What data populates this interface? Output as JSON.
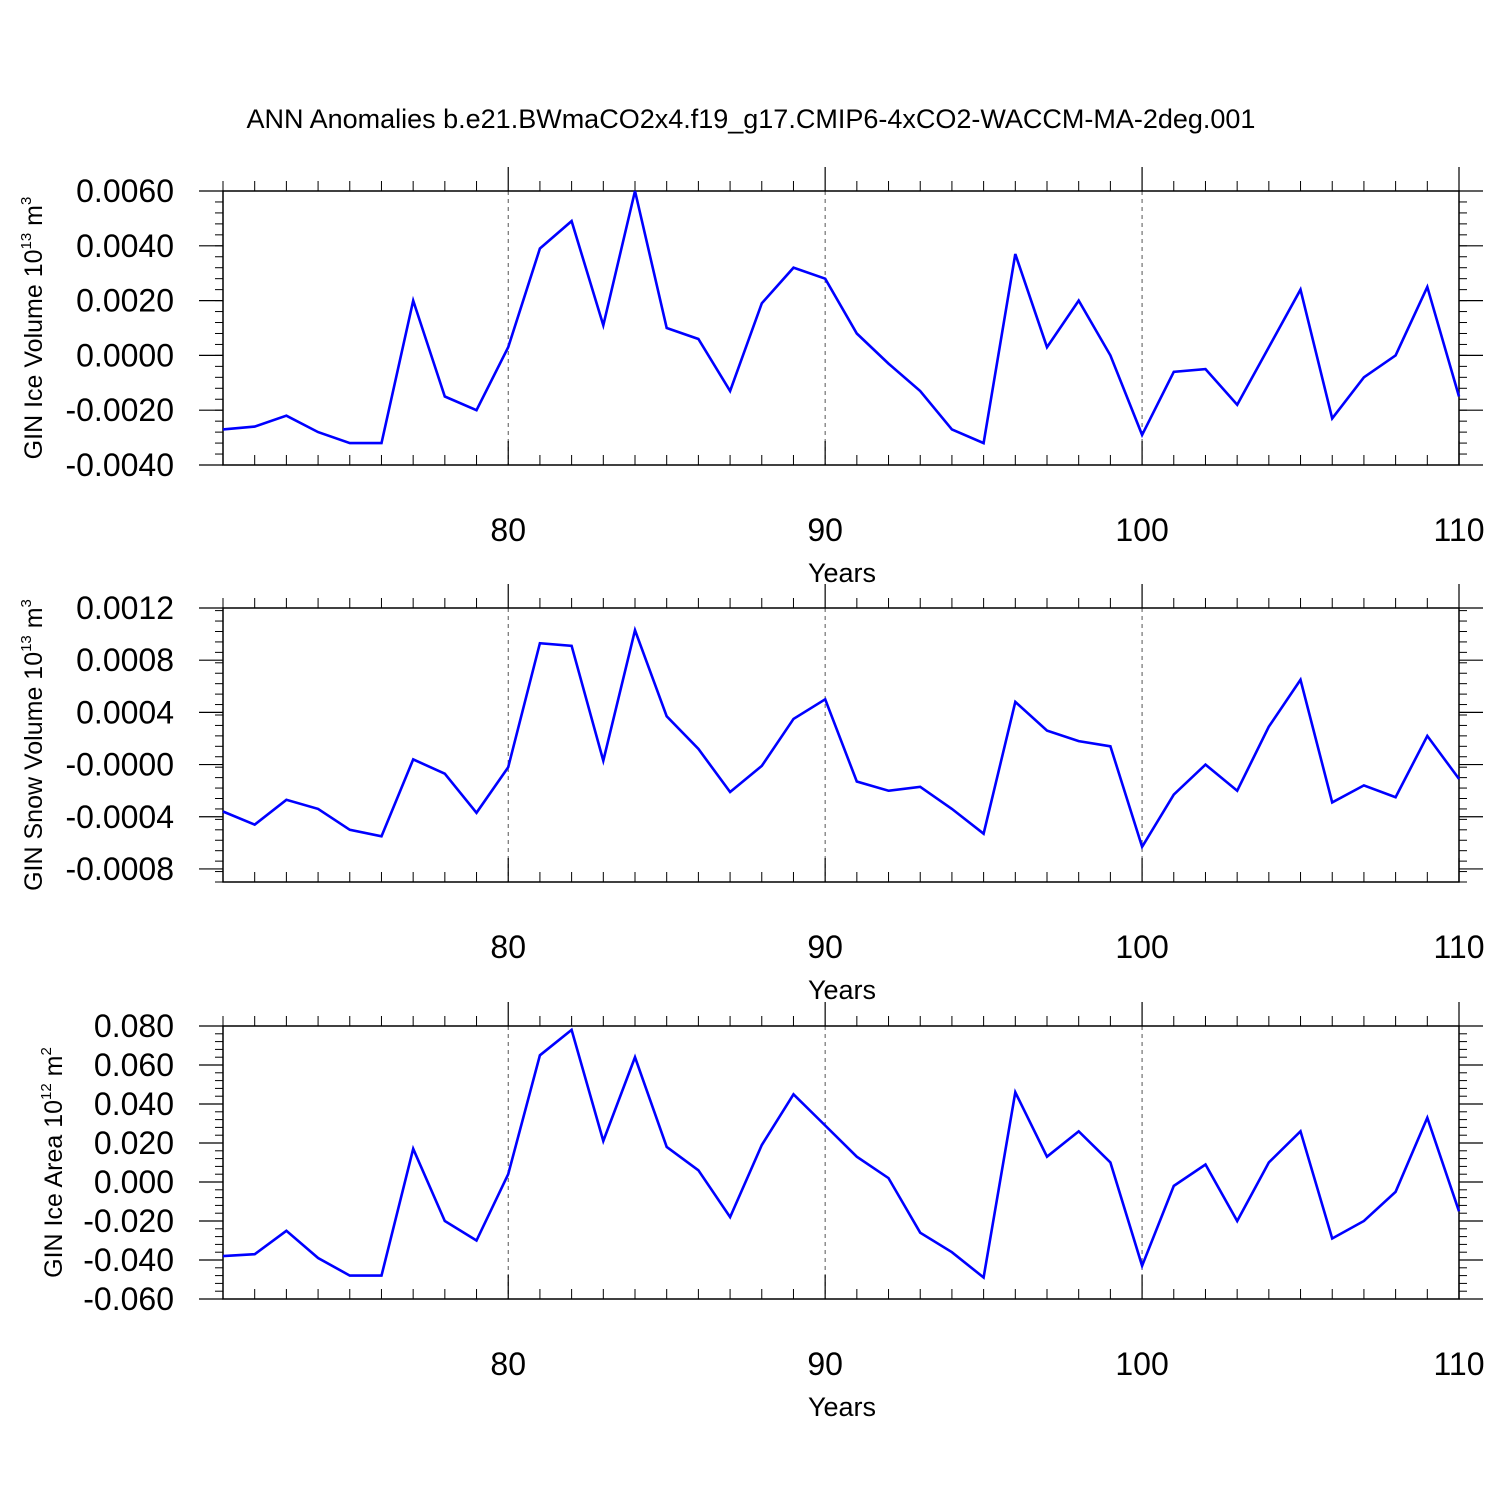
{
  "figure_title": "ANN Anomalies b.e21.BWmaCO2x4.f19_g17.CMIP6-4xCO2-WACCM-MA-2deg.001",
  "chart_data": [
    {
      "type": "line",
      "title": "",
      "ylabel_main": "GIN Ice Volume 10",
      "ylabel_exp": "13",
      "ylabel_unit": " m",
      "ylabel_unit_exp": "3",
      "xlabel": "Years",
      "xlim": [
        71,
        110
      ],
      "ylim": [
        -0.004,
        0.006
      ],
      "x_ticks": [
        "80",
        "90",
        "100",
        "110"
      ],
      "y_ticks": [
        "0.0060",
        "0.0040",
        "0.0020",
        "0.0000",
        "-0.0020",
        "-0.0040"
      ],
      "color": "#0000ff",
      "x": [
        71,
        72,
        73,
        74,
        75,
        76,
        77,
        78,
        79,
        80,
        81,
        82,
        83,
        84,
        85,
        86,
        87,
        88,
        89,
        90,
        91,
        92,
        93,
        94,
        95,
        96,
        97,
        98,
        99,
        100,
        101,
        102,
        103,
        104,
        105,
        106,
        107,
        108,
        109,
        110
      ],
      "values": [
        -0.0027,
        -0.0026,
        -0.0022,
        -0.0028,
        -0.0032,
        -0.0032,
        0.002,
        -0.0015,
        -0.002,
        0.0003,
        0.0039,
        0.0049,
        0.0011,
        0.006,
        0.001,
        0.0006,
        -0.0013,
        0.0019,
        0.0032,
        0.0028,
        0.0008,
        -0.0003,
        -0.0013,
        -0.0027,
        -0.0032,
        0.0037,
        0.0003,
        0.002,
        0.0,
        -0.0029,
        -0.0006,
        -0.0005,
        -0.0018,
        0.0003,
        0.0024,
        -0.0023,
        -0.0008,
        0.0,
        0.0025,
        -0.0015
      ]
    },
    {
      "type": "line",
      "title": "",
      "ylabel_main": "GIN Snow Volume 10",
      "ylabel_exp": "13",
      "ylabel_unit": " m",
      "ylabel_unit_exp": "3",
      "xlabel": "Years",
      "xlim": [
        71,
        110
      ],
      "ylim": [
        -0.0009,
        0.0012
      ],
      "x_ticks": [
        "80",
        "90",
        "100",
        "110"
      ],
      "y_ticks": [
        "0.0012",
        "0.0008",
        "0.0004",
        "-0.0000",
        "-0.0004",
        "-0.0008"
      ],
      "color": "#0000ff",
      "x": [
        71,
        72,
        73,
        74,
        75,
        76,
        77,
        78,
        79,
        80,
        81,
        82,
        83,
        84,
        85,
        86,
        87,
        88,
        89,
        90,
        91,
        92,
        93,
        94,
        95,
        96,
        97,
        98,
        99,
        100,
        101,
        102,
        103,
        104,
        105,
        106,
        107,
        108,
        109,
        110
      ],
      "values": [
        -0.00036,
        -0.00046,
        -0.00027,
        -0.00034,
        -0.0005,
        -0.00055,
        4e-05,
        -7e-05,
        -0.00037,
        -2e-05,
        0.00093,
        0.00091,
        3e-05,
        0.00103,
        0.00037,
        0.00012,
        -0.00021,
        -1e-05,
        0.00035,
        0.0005,
        -0.00013,
        -0.0002,
        -0.00017,
        -0.00034,
        -0.00053,
        0.00048,
        0.00026,
        0.00018,
        0.00014,
        -0.00063,
        -0.00023,
        0.0,
        -0.0002,
        0.00029,
        0.00065,
        -0.00029,
        -0.00016,
        -0.00025,
        0.00022,
        -0.00011
      ]
    },
    {
      "type": "line",
      "title": "",
      "ylabel_main": "GIN Ice Area 10",
      "ylabel_exp": "12",
      "ylabel_unit": " m",
      "ylabel_unit_exp": "2",
      "xlabel": "Years",
      "xlim": [
        71,
        110
      ],
      "ylim": [
        -0.06,
        0.08
      ],
      "x_ticks": [
        "80",
        "90",
        "100",
        "110"
      ],
      "y_ticks": [
        "0.080",
        "0.060",
        "0.040",
        "0.020",
        "0.000",
        "-0.020",
        "-0.040",
        "-0.060"
      ],
      "color": "#0000ff",
      "x": [
        71,
        72,
        73,
        74,
        75,
        76,
        77,
        78,
        79,
        80,
        81,
        82,
        83,
        84,
        85,
        86,
        87,
        88,
        89,
        90,
        91,
        92,
        93,
        94,
        95,
        96,
        97,
        98,
        99,
        100,
        101,
        102,
        103,
        104,
        105,
        106,
        107,
        108,
        109,
        110
      ],
      "values": [
        -0.038,
        -0.037,
        -0.025,
        -0.039,
        -0.048,
        -0.048,
        0.017,
        -0.02,
        -0.03,
        0.004,
        0.065,
        0.078,
        0.021,
        0.064,
        0.018,
        0.006,
        -0.018,
        0.019,
        0.045,
        0.029,
        0.013,
        0.002,
        -0.026,
        -0.036,
        -0.049,
        0.046,
        0.013,
        0.026,
        0.01,
        -0.043,
        -0.002,
        0.009,
        -0.02,
        0.01,
        0.026,
        -0.029,
        -0.02,
        -0.005,
        0.033,
        -0.015
      ]
    }
  ]
}
